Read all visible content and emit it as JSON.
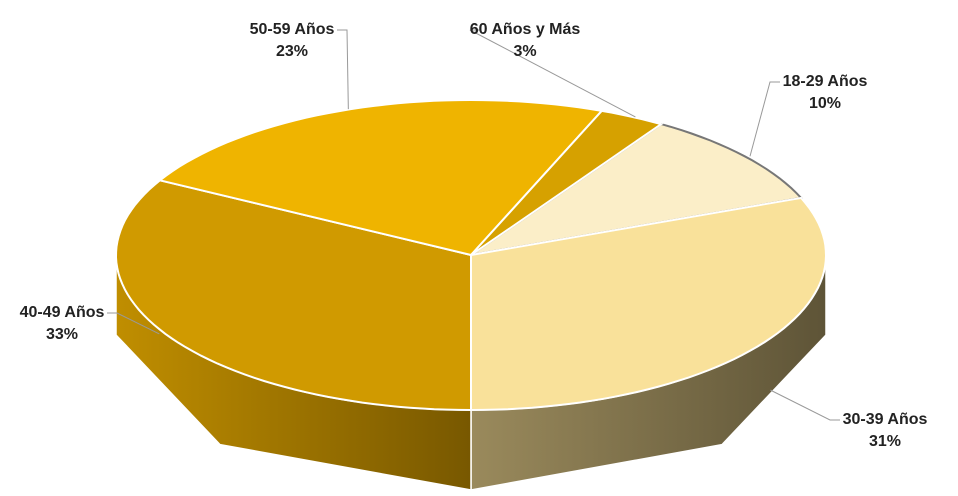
{
  "chart_data": {
    "type": "pie3d",
    "categories": [
      "18-29 Años",
      "30-39 Años",
      "40-49 Años",
      "50-59 Años",
      "60 Años y Más"
    ],
    "values": [
      10,
      31,
      33,
      23,
      3
    ],
    "value_labels": [
      "10%",
      "31%",
      "33%",
      "23%",
      "3%"
    ],
    "colors": [
      "#fbeec8",
      "#f9e19a",
      "#d09a00",
      "#efb400",
      "#d6a100"
    ]
  }
}
